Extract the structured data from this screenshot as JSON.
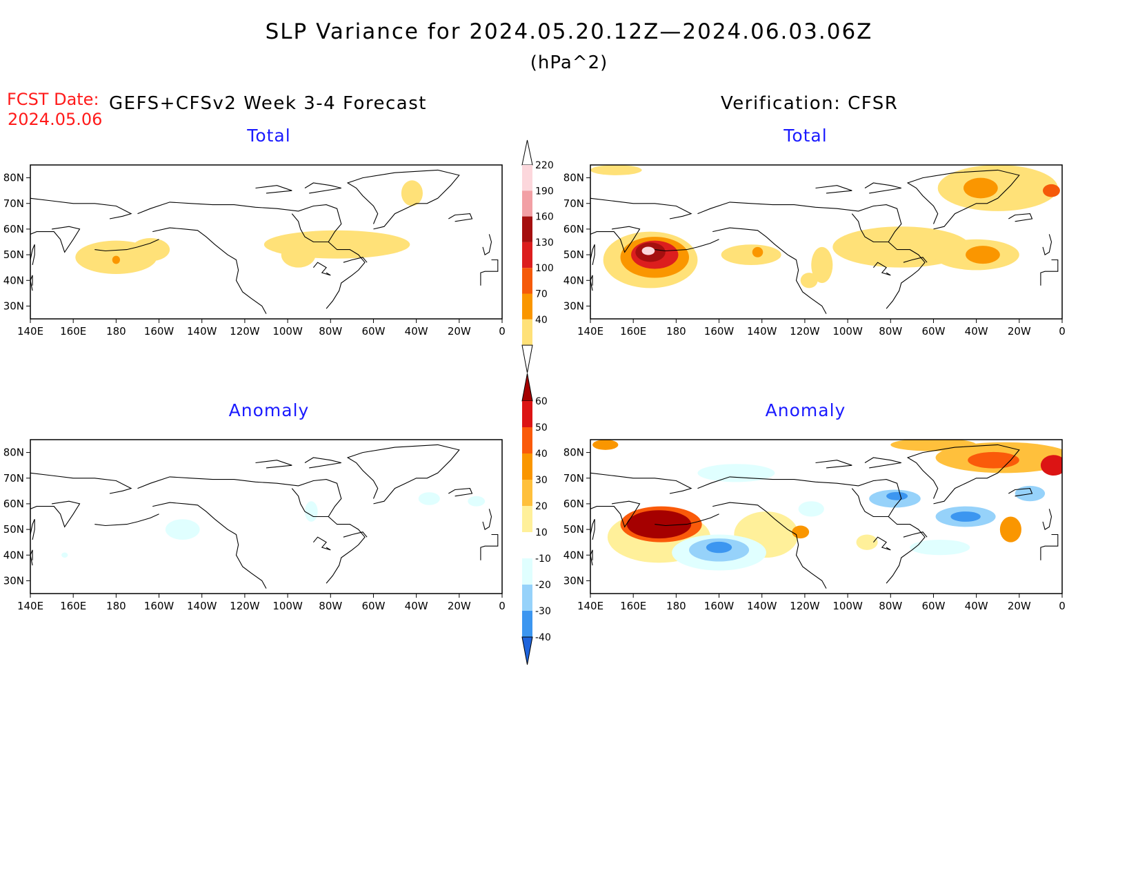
{
  "title": {
    "line1": "SLP Variance for 2024.05.20.12Z—2024.06.03.06Z",
    "line2": "(hPa^2)"
  },
  "fcst_date": {
    "label": "FCST Date:",
    "value": "2024.05.06"
  },
  "headers": {
    "forecast": "GEFS+CFSv2 Week 3-4 Forecast",
    "verification": "Verification: CFSR"
  },
  "panel_titles": {
    "forecast_total": "Total",
    "verification_total": "Total",
    "forecast_anomaly": "Anomaly",
    "verification_anomaly": "Anomaly"
  },
  "axes": {
    "lon_ticks": [
      "140E",
      "160E",
      "180",
      "160W",
      "140W",
      "120W",
      "100W",
      "80W",
      "60W",
      "40W",
      "20W",
      "0"
    ],
    "lat_ticks": [
      "80N",
      "70N",
      "60N",
      "50N",
      "40N",
      "30N"
    ],
    "lon_range": [
      140,
      360
    ],
    "lat_range": [
      25,
      85
    ]
  },
  "colorbars": {
    "total": {
      "labels": [
        "220",
        "190",
        "160",
        "130",
        "100",
        "70",
        "40"
      ],
      "colors": [
        "#ffffff",
        "#fcd7dc",
        "#f2a0a5",
        "#a50f0f",
        "#dc1e1e",
        "#f55a0a",
        "#fa9600",
        "#ffe178"
      ]
    },
    "anomaly": {
      "labels": [
        "60",
        "50",
        "40",
        "30",
        "20",
        "10",
        "-10",
        "-20",
        "-30",
        "-40"
      ],
      "colors": [
        "#a50000",
        "#dc1414",
        "#fa5a0a",
        "#fa9600",
        "#ffc03c",
        "#fff09a",
        "#ffffff",
        "#e0ffff",
        "#96d2fa",
        "#3c96f0",
        "#1e64dc"
      ]
    }
  },
  "chart_data": [
    {
      "panel": "forecast_total",
      "type": "heatmap",
      "units": "hPa^2",
      "features": [
        {
          "lon": 180,
          "lat": 49,
          "rx": 19,
          "ry": 6.5,
          "value": 55
        },
        {
          "lon": 196,
          "lat": 52,
          "rx": 9,
          "ry": 4.5,
          "value": 48
        },
        {
          "lon": 180,
          "lat": 48,
          "rx": 1.8,
          "ry": 1.6,
          "value": 78
        },
        {
          "lon": 283,
          "lat": 54,
          "rx": 34,
          "ry": 5.5,
          "value": 52
        },
        {
          "lon": 265,
          "lat": 50,
          "rx": 8,
          "ry": 5,
          "value": 48
        },
        {
          "lon": 318,
          "lat": 74,
          "rx": 5,
          "ry": 5,
          "value": 50
        }
      ]
    },
    {
      "panel": "verification_total",
      "type": "heatmap",
      "units": "hPa^2",
      "features": [
        {
          "lon": 168,
          "lat": 48,
          "rx": 22,
          "ry": 11,
          "value": 55
        },
        {
          "lon": 170,
          "lat": 49,
          "rx": 16,
          "ry": 8,
          "value": 90
        },
        {
          "lon": 170,
          "lat": 50,
          "rx": 11,
          "ry": 5.5,
          "value": 140
        },
        {
          "lon": 168,
          "lat": 51,
          "rx": 7,
          "ry": 3.8,
          "value": 180
        },
        {
          "lon": 167,
          "lat": 51.5,
          "rx": 3,
          "ry": 1.6,
          "value": 225
        },
        {
          "lon": 215,
          "lat": 50,
          "rx": 14,
          "ry": 4,
          "value": 50
        },
        {
          "lon": 218,
          "lat": 51,
          "rx": 2.5,
          "ry": 2,
          "value": 80
        },
        {
          "lon": 285,
          "lat": 53,
          "rx": 32,
          "ry": 8,
          "value": 52
        },
        {
          "lon": 320,
          "lat": 50,
          "rx": 20,
          "ry": 6,
          "value": 60
        },
        {
          "lon": 323,
          "lat": 50,
          "rx": 8,
          "ry": 3.5,
          "value": 85
        },
        {
          "lon": 330,
          "lat": 76,
          "rx": 28,
          "ry": 9,
          "value": 55
        },
        {
          "lon": 322,
          "lat": 76,
          "rx": 8,
          "ry": 4,
          "value": 80
        },
        {
          "lon": 355,
          "lat": 75,
          "rx": 4,
          "ry": 2.5,
          "value": 100
        },
        {
          "lon": 152,
          "lat": 83,
          "rx": 12,
          "ry": 2,
          "value": 50
        },
        {
          "lon": 248,
          "lat": 46,
          "rx": 5,
          "ry": 7,
          "value": 48
        },
        {
          "lon": 242,
          "lat": 40,
          "rx": 4,
          "ry": 3,
          "value": 45
        }
      ]
    },
    {
      "panel": "forecast_anomaly",
      "type": "heatmap",
      "units": "hPa^2",
      "features": [
        {
          "lon": 211,
          "lat": 50,
          "rx": 8,
          "ry": 4,
          "value": -13
        },
        {
          "lon": 271,
          "lat": 57,
          "rx": 3,
          "ry": 4,
          "value": -13
        },
        {
          "lon": 326,
          "lat": 62,
          "rx": 5,
          "ry": 2.5,
          "value": -12
        },
        {
          "lon": 348,
          "lat": 61,
          "rx": 4,
          "ry": 2,
          "value": -12
        },
        {
          "lon": 156,
          "lat": 40,
          "rx": 1.5,
          "ry": 1,
          "value": -11
        }
      ]
    },
    {
      "panel": "verification_anomaly",
      "type": "heatmap",
      "units": "hPa^2",
      "features": [
        {
          "lon": 172,
          "lat": 47,
          "rx": 24,
          "ry": 10,
          "value": 15
        },
        {
          "lon": 173,
          "lat": 52,
          "rx": 19,
          "ry": 7,
          "value": 42
        },
        {
          "lon": 172,
          "lat": 52,
          "rx": 15,
          "ry": 5.5,
          "value": 62
        },
        {
          "lon": 200,
          "lat": 41,
          "rx": 22,
          "ry": 7,
          "value": -15
        },
        {
          "lon": 200,
          "lat": 42,
          "rx": 14,
          "ry": 4.5,
          "value": -25
        },
        {
          "lon": 200,
          "lat": 43,
          "rx": 6,
          "ry": 2.2,
          "value": -35
        },
        {
          "lon": 222,
          "lat": 48,
          "rx": 15,
          "ry": 9,
          "value": 12
        },
        {
          "lon": 238,
          "lat": 49,
          "rx": 4,
          "ry": 2.5,
          "value": 32
        },
        {
          "lon": 333,
          "lat": 78,
          "rx": 32,
          "ry": 6,
          "value": 22
        },
        {
          "lon": 328,
          "lat": 77,
          "rx": 12,
          "ry": 3.2,
          "value": 42
        },
        {
          "lon": 356,
          "lat": 75,
          "rx": 6,
          "ry": 4,
          "value": 55
        },
        {
          "lon": 300,
          "lat": 83,
          "rx": 20,
          "ry": 2.5,
          "value": 25
        },
        {
          "lon": 315,
          "lat": 55,
          "rx": 14,
          "ry": 4,
          "value": -20
        },
        {
          "lon": 315,
          "lat": 55,
          "rx": 7,
          "ry": 2,
          "value": -35
        },
        {
          "lon": 282,
          "lat": 62,
          "rx": 12,
          "ry": 3.5,
          "value": -22
        },
        {
          "lon": 283,
          "lat": 63,
          "rx": 5,
          "ry": 1.6,
          "value": -32
        },
        {
          "lon": 336,
          "lat": 50,
          "rx": 5,
          "ry": 5,
          "value": 38
        },
        {
          "lon": 303,
          "lat": 43,
          "rx": 14,
          "ry": 3,
          "value": -12
        },
        {
          "lon": 269,
          "lat": 45,
          "rx": 5,
          "ry": 3,
          "value": 12
        },
        {
          "lon": 243,
          "lat": 58,
          "rx": 6,
          "ry": 3,
          "value": -12
        },
        {
          "lon": 208,
          "lat": 72,
          "rx": 18,
          "ry": 3.5,
          "value": -12
        },
        {
          "lon": 345,
          "lat": 64,
          "rx": 7,
          "ry": 3,
          "value": -22
        },
        {
          "lon": 147,
          "lat": 83,
          "rx": 6,
          "ry": 2,
          "value": 30
        }
      ]
    }
  ]
}
